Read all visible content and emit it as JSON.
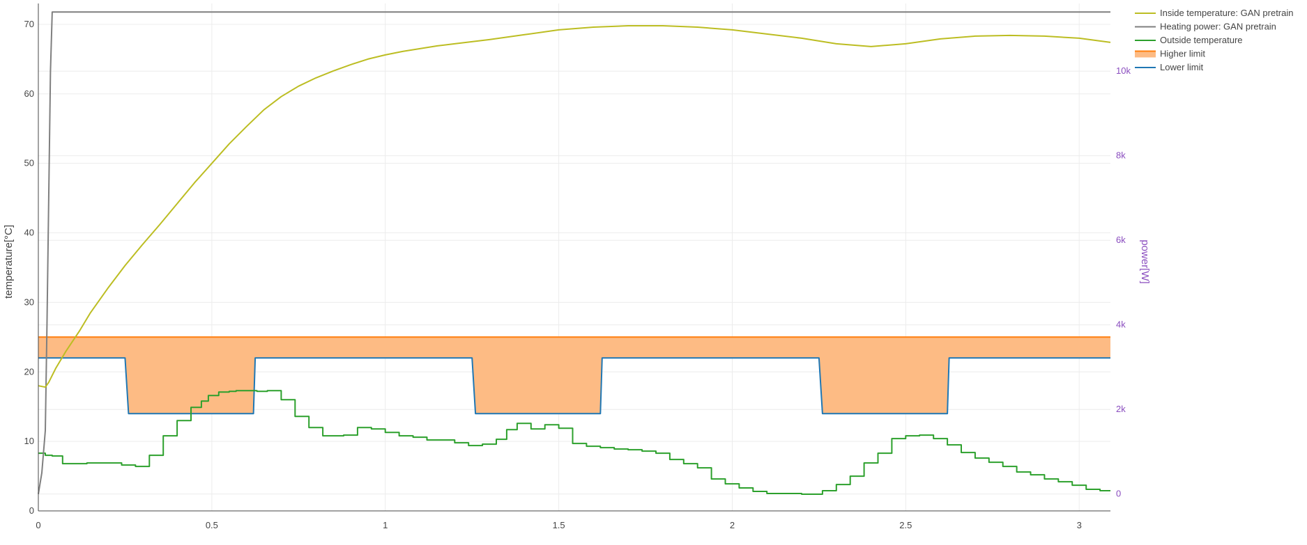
{
  "chart_data": {
    "type": "line",
    "xlim": [
      0,
      3.09
    ],
    "x_ticks": [
      0,
      0.5,
      1,
      1.5,
      2,
      2.5,
      3
    ],
    "x_tick_labels": [
      "0",
      "0.5",
      "1",
      "1.5",
      "2",
      "2.5",
      "3"
    ],
    "y_left": {
      "label": "temperature[°C]",
      "range": [
        0,
        73
      ],
      "ticks": [
        0,
        10,
        20,
        30,
        40,
        50,
        60,
        70
      ],
      "tick_labels": [
        "0",
        "10",
        "20",
        "30",
        "40",
        "50",
        "60",
        "70"
      ]
    },
    "y_right": {
      "label": "power[W]",
      "range": [
        -400,
        11600
      ],
      "ticks": [
        0,
        2000,
        4000,
        6000,
        8000,
        10000
      ],
      "tick_labels": [
        "0",
        "2k",
        "4k",
        "6k",
        "8k",
        "10k"
      ],
      "color": "#8a4dbf"
    },
    "grid": true,
    "legend_position": "top-right",
    "series": [
      {
        "name": "Inside temperature: GAN pretrain",
        "axis": "left",
        "color": "#bcbd22",
        "x": [
          0,
          0.02,
          0.03,
          0.05,
          0.08,
          0.12,
          0.15,
          0.2,
          0.25,
          0.3,
          0.35,
          0.4,
          0.45,
          0.5,
          0.55,
          0.6,
          0.65,
          0.7,
          0.75,
          0.8,
          0.85,
          0.9,
          0.95,
          1.0,
          1.05,
          1.1,
          1.15,
          1.2,
          1.3,
          1.4,
          1.5,
          1.6,
          1.7,
          1.8,
          1.9,
          2.0,
          2.1,
          2.2,
          2.3,
          2.4,
          2.5,
          2.6,
          2.7,
          2.8,
          2.9,
          3.0,
          3.09
        ],
        "y": [
          18.0,
          17.8,
          18.5,
          20.5,
          23.0,
          26.0,
          28.5,
          32.0,
          35.3,
          38.3,
          41.2,
          44.2,
          47.2,
          50.0,
          52.8,
          55.3,
          57.7,
          59.6,
          61.1,
          62.3,
          63.3,
          64.2,
          65.0,
          65.6,
          66.1,
          66.5,
          66.9,
          67.2,
          67.8,
          68.5,
          69.2,
          69.6,
          69.8,
          69.8,
          69.6,
          69.2,
          68.6,
          68.0,
          67.2,
          66.8,
          67.2,
          67.9,
          68.3,
          68.4,
          68.3,
          68.0,
          67.4
        ]
      },
      {
        "name": "Heating power: GAN pretrain",
        "axis": "right",
        "color": "#7f7f7f",
        "x": [
          0,
          0.01,
          0.02,
          0.025,
          0.03,
          0.035,
          0.04,
          3.09
        ],
        "y": [
          0,
          500,
          1500,
          4000,
          7000,
          10000,
          11400,
          11400
        ]
      },
      {
        "name": "Outside temperature",
        "axis": "left",
        "color": "#2ca02c",
        "step": true,
        "x": [
          0,
          0.02,
          0.04,
          0.07,
          0.14,
          0.24,
          0.28,
          0.32,
          0.36,
          0.4,
          0.44,
          0.47,
          0.49,
          0.52,
          0.55,
          0.57,
          0.6,
          0.63,
          0.66,
          0.7,
          0.74,
          0.78,
          0.82,
          0.88,
          0.92,
          0.96,
          1.0,
          1.04,
          1.08,
          1.12,
          1.16,
          1.2,
          1.24,
          1.28,
          1.32,
          1.35,
          1.38,
          1.42,
          1.46,
          1.5,
          1.54,
          1.58,
          1.62,
          1.66,
          1.7,
          1.74,
          1.78,
          1.82,
          1.86,
          1.9,
          1.94,
          1.98,
          2.02,
          2.06,
          2.1,
          2.14,
          2.2,
          2.26,
          2.3,
          2.34,
          2.38,
          2.42,
          2.46,
          2.5,
          2.54,
          2.58,
          2.62,
          2.66,
          2.7,
          2.74,
          2.78,
          2.82,
          2.86,
          2.9,
          2.94,
          2.98,
          3.02,
          3.06,
          3.09
        ],
        "y": [
          8.3,
          8.0,
          7.9,
          6.8,
          6.9,
          6.6,
          6.4,
          8.0,
          10.8,
          13.0,
          14.9,
          15.8,
          16.6,
          17.1,
          17.2,
          17.3,
          17.3,
          17.2,
          17.3,
          16.0,
          13.6,
          12.0,
          10.8,
          10.9,
          12.0,
          11.8,
          11.3,
          10.8,
          10.6,
          10.2,
          10.2,
          9.8,
          9.4,
          9.6,
          10.3,
          11.7,
          12.6,
          11.8,
          12.4,
          11.9,
          9.7,
          9.3,
          9.1,
          8.9,
          8.8,
          8.6,
          8.3,
          7.4,
          6.8,
          6.2,
          4.6,
          3.9,
          3.3,
          2.8,
          2.5,
          2.5,
          2.4,
          2.9,
          3.8,
          5.0,
          6.9,
          8.3,
          10.4,
          10.8,
          10.9,
          10.4,
          9.5,
          8.4,
          7.6,
          7.0,
          6.4,
          5.6,
          5.2,
          4.6,
          4.2,
          3.7,
          3.1,
          2.9,
          2.9
        ]
      },
      {
        "name": "Higher limit",
        "axis": "left",
        "color": "#ff7f0e",
        "fill": "#fdbb84",
        "x": [
          0,
          3.09
        ],
        "y": [
          25,
          25
        ]
      },
      {
        "name": "Lower limit",
        "axis": "left",
        "color": "#1f77b4",
        "x": [
          0,
          0.25,
          0.26,
          0.62,
          0.625,
          1.25,
          1.26,
          1.62,
          1.625,
          2.25,
          2.26,
          2.62,
          2.625,
          3.09
        ],
        "y": [
          22,
          22,
          14,
          14,
          22,
          22,
          14,
          14,
          22,
          22,
          14,
          14,
          22,
          22
        ]
      }
    ]
  }
}
